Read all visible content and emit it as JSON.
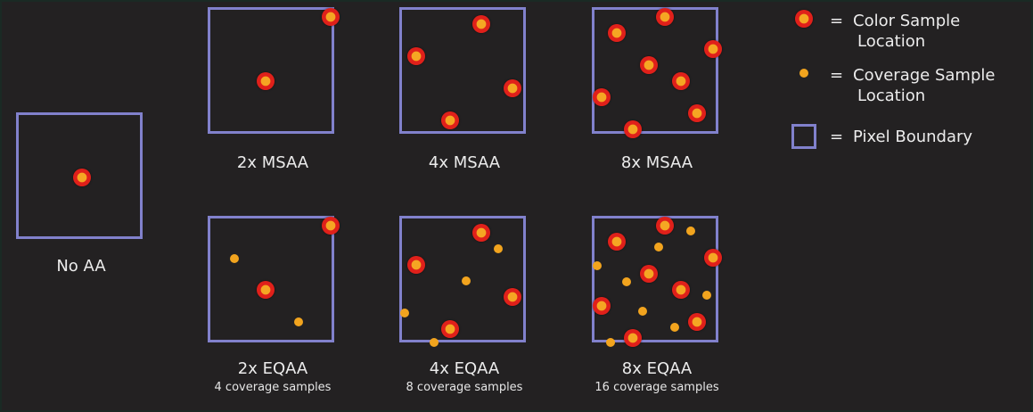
{
  "legend": {
    "color_sample": {
      "eq": "=",
      "line1": "Color Sample",
      "line2": "Location"
    },
    "coverage_sample": {
      "eq": "=",
      "line1": "Coverage Sample",
      "line2": "Location"
    },
    "pixel_boundary": {
      "eq": "=",
      "label": "Pixel Boundary"
    }
  },
  "panels": {
    "no_aa": {
      "label": "No AA"
    },
    "msaa_2x": {
      "label": "2x MSAA"
    },
    "msaa_4x": {
      "label": "4x MSAA"
    },
    "msaa_8x": {
      "label": "8x MSAA"
    },
    "eqaa_2x": {
      "label": "2x EQAA",
      "sublabel": "4 coverage samples"
    },
    "eqaa_4x": {
      "label": "4x EQAA",
      "sublabel": "8 coverage samples"
    },
    "eqaa_8x": {
      "label": "8x EQAA",
      "sublabel": "16 coverage samples"
    }
  },
  "colors": {
    "background": "#232122",
    "pixel_boundary": "#8181cc",
    "color_sample_outer": "#e0201a",
    "color_sample_inner": "#f5a623",
    "coverage_sample": "#f2a41e"
  }
}
